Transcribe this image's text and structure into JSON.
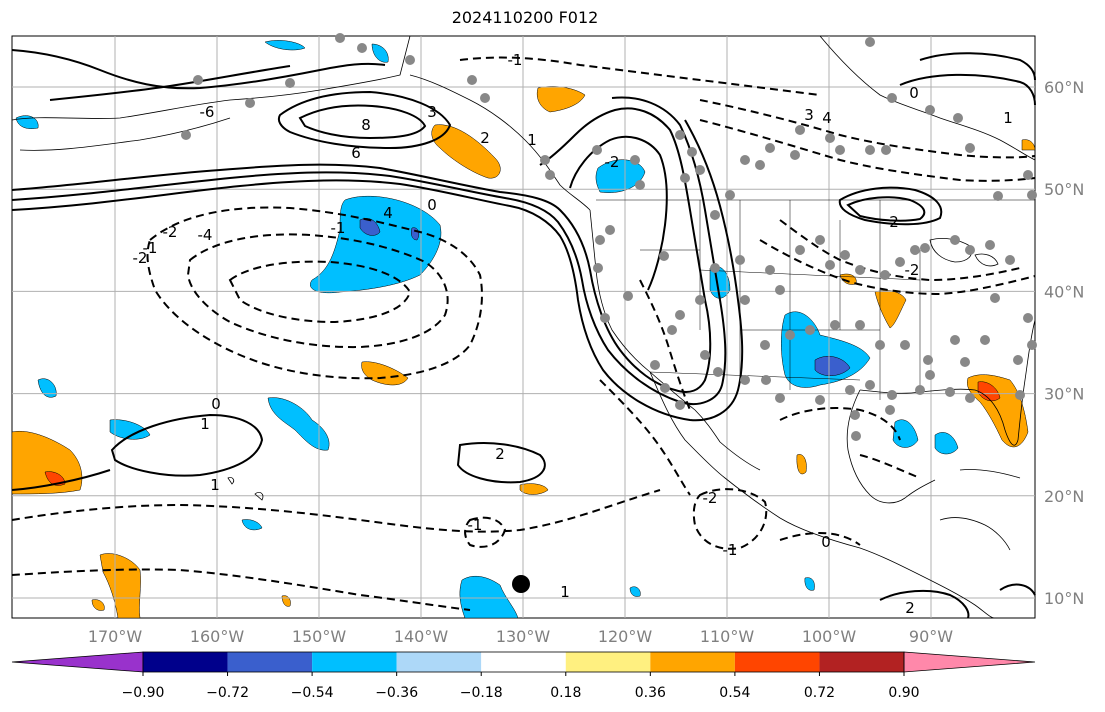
{
  "title": "2024110200 F012",
  "map": {
    "lon_ticks": [
      "170°W",
      "160°W",
      "150°W",
      "140°W",
      "130°W",
      "120°W",
      "110°W",
      "100°W",
      "90°W"
    ],
    "lat_ticks": [
      "60°N",
      "50°N",
      "40°N",
      "30°N",
      "20°N",
      "10°N"
    ],
    "extent": {
      "lon": [
        -180,
        -80
      ],
      "lat": [
        8,
        66
      ]
    },
    "grid": true,
    "contour_labels": [
      "8",
      "6",
      "4",
      "3",
      "2",
      "1",
      "0",
      "-1",
      "-2",
      "-4",
      "-6",
      "2",
      "1",
      "0",
      "-1",
      "-2",
      "1",
      "-2",
      "-1",
      "-1",
      "0",
      "-2",
      "4",
      "3",
      "0",
      "1",
      "2",
      "-2",
      "-1",
      "1",
      "2"
    ],
    "colors": {
      "contour": "#000000",
      "grid": "#b0b0b0",
      "coast": "#000000",
      "station_dot": "#888888",
      "tc_marker": "#000000"
    }
  },
  "colorbar": {
    "levels": [
      "−0.90",
      "−0.72",
      "−0.54",
      "−0.36",
      "−0.18",
      "0.18",
      "0.36",
      "0.54",
      "0.72",
      "0.90"
    ],
    "colors": [
      "#9932cc",
      "#00008b",
      "#3a5fcd",
      "#00bfff",
      "#add8f8",
      "#ffffff",
      "#fff080",
      "#ffa500",
      "#ff4500",
      "#b22222",
      "#ff88aa"
    ],
    "extend": "both"
  }
}
